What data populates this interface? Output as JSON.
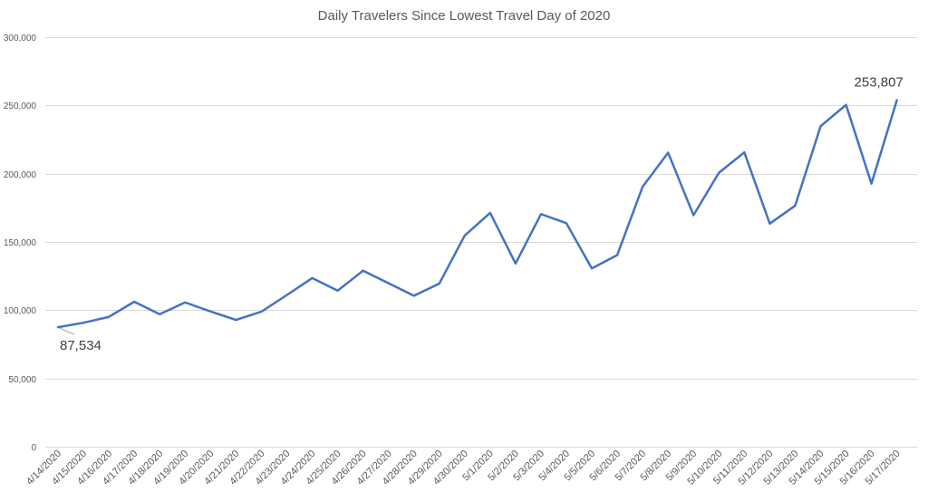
{
  "chart_data": {
    "type": "line",
    "title": "Daily Travelers Since Lowest Travel Day of 2020",
    "xlabel": "",
    "ylabel": "",
    "ylim": [
      0,
      300000
    ],
    "yticks": [
      0,
      50000,
      100000,
      150000,
      200000,
      250000,
      300000
    ],
    "ytick_labels": [
      "0",
      "50,000",
      "100,000",
      "150,000",
      "200,000",
      "250,000",
      "300,000"
    ],
    "grid": true,
    "legend": "none",
    "categories": [
      "4/14/2020",
      "4/15/2020",
      "4/16/2020",
      "4/17/2020",
      "4/18/2020",
      "4/19/2020",
      "4/20/2020",
      "4/21/2020",
      "4/22/2020",
      "4/23/2020",
      "4/24/2020",
      "4/25/2020",
      "4/26/2020",
      "4/27/2020",
      "4/28/2020",
      "4/29/2020",
      "4/30/2020",
      "5/1/2020",
      "5/2/2020",
      "5/3/2020",
      "5/4/2020",
      "5/5/2020",
      "5/6/2020",
      "5/7/2020",
      "5/8/2020",
      "5/9/2020",
      "5/10/2020",
      "5/11/2020",
      "5/12/2020",
      "5/13/2020",
      "5/14/2020",
      "5/15/2020",
      "5/16/2020",
      "5/17/2020"
    ],
    "series": [
      {
        "values": [
          87534,
          90800,
          95100,
          106200,
          97100,
          105700,
          99100,
          92900,
          98900,
          111100,
          123500,
          114300,
          128900,
          119800,
          110600,
          119500,
          154700,
          171300,
          134200,
          170400,
          163700,
          130600,
          140400,
          190500,
          215400,
          169600,
          200700,
          215600,
          163400,
          176600,
          234800,
          250400,
          192700,
          253807
        ],
        "color": "#4472c4"
      }
    ],
    "annotations": [
      {
        "label": "87,534",
        "index": 0
      },
      {
        "label": "253,807",
        "index": 33
      }
    ]
  }
}
